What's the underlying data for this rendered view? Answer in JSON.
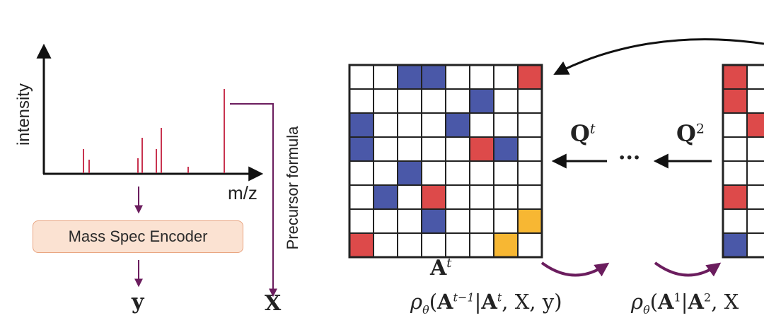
{
  "spectrum": {
    "y_axis_label": "intensity",
    "x_axis_label": "m/z",
    "peak_color": "#c8334f",
    "peaks": [
      {
        "mz": 118,
        "intensity": 34
      },
      {
        "mz": 126,
        "intensity": 19
      },
      {
        "mz": 195,
        "intensity": 21
      },
      {
        "mz": 201,
        "intensity": 50
      },
      {
        "mz": 221,
        "intensity": 34
      },
      {
        "mz": 228,
        "intensity": 64
      },
      {
        "mz": 266,
        "intensity": 9
      },
      {
        "mz": 317,
        "intensity": 119
      }
    ]
  },
  "encoder": {
    "label": "Mass Spec Encoder"
  },
  "outputs": {
    "embedding_symbol": "y",
    "formula_symbol": "X"
  },
  "precursor": {
    "label": "Precursor formula"
  },
  "colors": {
    "flow_arrow": "#6b1d5e",
    "cell_blue": "#4a58a8",
    "cell_red": "#dd4a4a",
    "cell_yellow": "#f7b733",
    "grid_line": "#222222"
  },
  "matrix_left": {
    "label": "A",
    "label_superscript": "t",
    "size": 8,
    "cells": [
      [
        0,
        2,
        "blue"
      ],
      [
        0,
        3,
        "blue"
      ],
      [
        0,
        7,
        "red"
      ],
      [
        1,
        5,
        "blue"
      ],
      [
        2,
        0,
        "blue"
      ],
      [
        2,
        4,
        "blue"
      ],
      [
        3,
        0,
        "blue"
      ],
      [
        3,
        5,
        "red"
      ],
      [
        3,
        6,
        "blue"
      ],
      [
        4,
        2,
        "blue"
      ],
      [
        5,
        1,
        "blue"
      ],
      [
        5,
        3,
        "red"
      ],
      [
        6,
        3,
        "blue"
      ],
      [
        6,
        7,
        "yellow"
      ],
      [
        7,
        0,
        "red"
      ],
      [
        7,
        6,
        "yellow"
      ]
    ]
  },
  "matrix_right": {
    "rows": 8,
    "visible_columns": 2,
    "cells": [
      [
        0,
        0,
        "red"
      ],
      [
        1,
        0,
        "red"
      ],
      [
        2,
        1,
        "red"
      ],
      [
        5,
        0,
        "red"
      ],
      [
        7,
        0,
        "blue"
      ]
    ]
  },
  "transitions": {
    "q_left": "Q",
    "q_left_superscript": "t",
    "q_right": "Q",
    "q_right_superscript": "2",
    "ellipsis": "···"
  },
  "formulas": {
    "formula_1": {
      "rho": "ρ",
      "sub": "θ",
      "A": "A",
      "sup1": "t−1",
      "bar": "|",
      "A2": "A",
      "sup2": "t",
      "rest": ", X, y)"
    },
    "formula_2": {
      "rho": "ρ",
      "sub": "θ",
      "A": "A",
      "sup1": "1",
      "bar": "|",
      "A2": "A",
      "sup2": "2",
      "rest": ", X"
    }
  }
}
